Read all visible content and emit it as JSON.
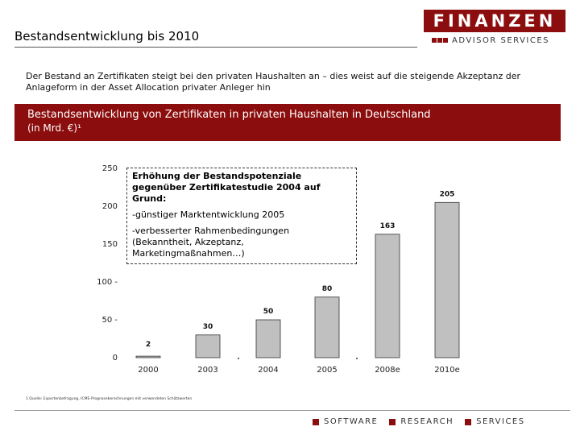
{
  "page": {
    "title": "Bestandsentwicklung bis 2010",
    "intro": "Der Bestand an Zertifikaten steigt bei den privaten Haushalten an – dies weist auf die steigende Akzeptanz der Anlageform in der Asset Allocation privater Anleger hin"
  },
  "logo": {
    "main": "FINANZEN",
    "sub": "ADVISOR SERVICES"
  },
  "banner": {
    "line1": "Bestandsentwicklung von Zertifikaten in privaten Haushalten in Deutschland",
    "line2": "(in Mrd. €)¹"
  },
  "callout": {
    "heading": "Erhöhung der Bestandspotenziale gegenüber Zertifikatestudie 2004 auf Grund:",
    "bullet1": "-günstiger Marktentwicklung 2005",
    "bullet2": "-verbesserter Rahmenbedingungen (Bekanntheit, Akzeptanz, Marketingmaßnahmen…)"
  },
  "footnote": "1 Quelle: Expertenbefragung, ICME-Prognoseberechnungen mit verwendeten Schätzwerten",
  "footer": {
    "items": [
      "SOFTWARE",
      "RESEARCH",
      "SERVICES"
    ]
  },
  "colors": {
    "brand": "#8b0d0d",
    "bar": "#c0c0c0"
  },
  "chart_data": {
    "type": "bar",
    "title": "Bestandsentwicklung von Zertifikaten in privaten Haushalten in Deutschland",
    "ylabel": "in Mrd. €",
    "categories": [
      "2000",
      "2003",
      "2004",
      "2005",
      "2008e",
      "2010e"
    ],
    "values": [
      2,
      30,
      50,
      80,
      163,
      205
    ],
    "value_labels": [
      "2",
      "30",
      "50",
      "80",
      "163",
      "205"
    ],
    "y_ticks": [
      "250",
      "200",
      "150",
      "100 -",
      "50 -",
      "0"
    ],
    "y_tick_values": [
      250,
      200,
      150,
      100,
      50,
      0
    ],
    "ylim": [
      0,
      250
    ]
  }
}
